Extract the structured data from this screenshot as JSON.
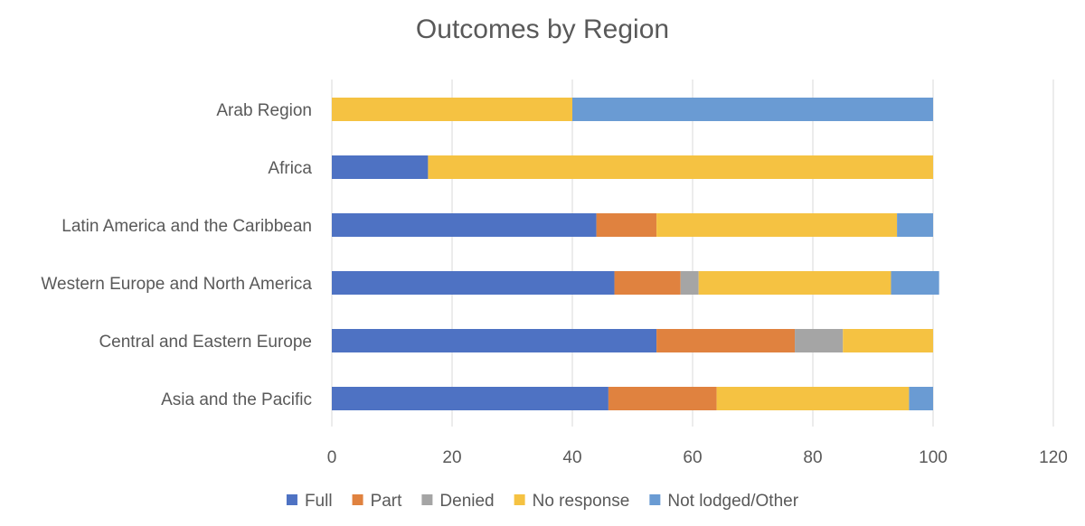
{
  "chart_data": {
    "type": "bar",
    "orientation": "horizontal",
    "stacked": true,
    "title": "Outcomes by Region",
    "categories": [
      "Arab Region",
      "Africa",
      "Latin America and the Caribbean",
      "Western Europe and North America",
      "Central and Eastern Europe",
      "Asia and the Pacific"
    ],
    "series": [
      {
        "name": "Full",
        "color": "#4E72C3",
        "values": [
          0,
          16,
          44,
          47,
          54,
          46
        ]
      },
      {
        "name": "Part",
        "color": "#E0823F",
        "values": [
          0,
          0,
          10,
          11,
          23,
          18
        ]
      },
      {
        "name": "Denied",
        "color": "#A5A5A5",
        "values": [
          0,
          0,
          0,
          3,
          8,
          0
        ]
      },
      {
        "name": "No response",
        "color": "#F5C242",
        "values": [
          40,
          84,
          40,
          32,
          15,
          32
        ]
      },
      {
        "name": "Not lodged/Other",
        "color": "#6A9BD3",
        "values": [
          60,
          0,
          6,
          8,
          0,
          4
        ]
      }
    ],
    "xlim": [
      0,
      120
    ],
    "xticks": [
      "0",
      "20",
      "40",
      "60",
      "80",
      "100",
      "120"
    ],
    "gridlines": "vertical",
    "legend_position": "bottom"
  }
}
